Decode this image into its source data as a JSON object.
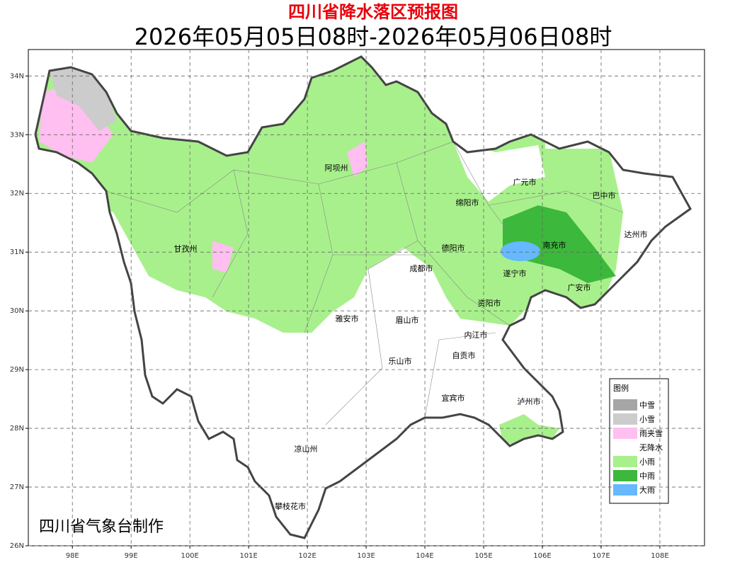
{
  "header": {
    "title": "四川省降水落区预报图",
    "subtitle": "2026年05月05日08时-2026年05月06日08时"
  },
  "map": {
    "xlim": [
      97.25,
      108.76
    ],
    "ylim": [
      26,
      34.45
    ],
    "xticks": [
      {
        "value": 98,
        "label": "98E"
      },
      {
        "value": 99,
        "label": "99E"
      },
      {
        "value": 100,
        "label": "100E"
      },
      {
        "value": 101,
        "label": "101E"
      },
      {
        "value": 102,
        "label": "102E"
      },
      {
        "value": 103,
        "label": "103E"
      },
      {
        "value": 104,
        "label": "104E"
      },
      {
        "value": 105,
        "label": "105E"
      },
      {
        "value": 106,
        "label": "106E"
      },
      {
        "value": 107,
        "label": "107E"
      },
      {
        "value": 108,
        "label": "108E"
      }
    ],
    "yticks": [
      {
        "value": 26,
        "label": "26N"
      },
      {
        "value": 27,
        "label": "27N"
      },
      {
        "value": 28,
        "label": "28N"
      },
      {
        "value": 29,
        "label": "29N"
      },
      {
        "value": 30,
        "label": "30N"
      },
      {
        "value": 31,
        "label": "31N"
      },
      {
        "value": 32,
        "label": "32N"
      },
      {
        "value": 33,
        "label": "33N"
      },
      {
        "value": 34,
        "label": "34N"
      }
    ],
    "grid": true,
    "cities": [
      "阿坝州",
      "甘孜州",
      "广元市",
      "巴中市",
      "绵阳市",
      "达州市",
      "德阳市",
      "南充市",
      "成都市",
      "遂宁市",
      "广安市",
      "资阳市",
      "雅安市",
      "眉山市",
      "内江市",
      "自贡市",
      "乐山市",
      "宜宾市",
      "泸州市",
      "凉山州",
      "攀枝花市"
    ],
    "credit": "四川省气象台制作"
  },
  "legend": {
    "title": "图例",
    "items": [
      {
        "name": "中雪",
        "color": "#a6a6a6"
      },
      {
        "name": "小雪",
        "color": "#cccccc"
      },
      {
        "name": "雨夹雪",
        "color": "#ffbff0"
      },
      {
        "name": "无降水",
        "color": "#ffffff"
      },
      {
        "name": "小雨",
        "color": "#a8f08c"
      },
      {
        "name": "中雨",
        "color": "#3cb83c"
      },
      {
        "name": "大雨",
        "color": "#66b8ff"
      }
    ]
  }
}
